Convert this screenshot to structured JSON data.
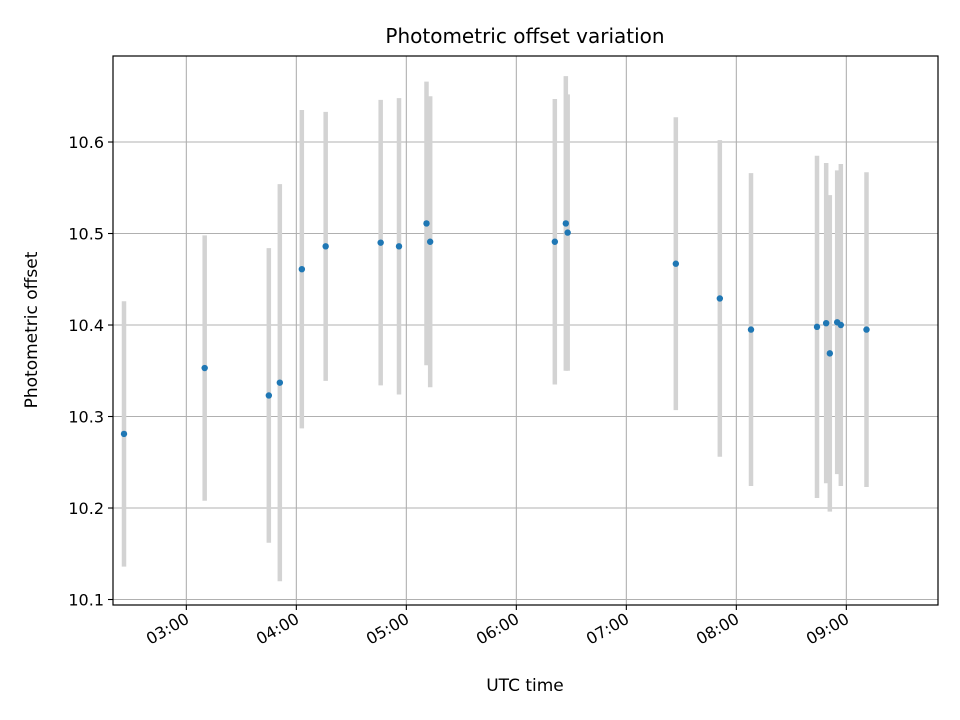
{
  "chart_data": {
    "type": "scatter",
    "title": "Photometric offset variation",
    "xlabel": "UTC time",
    "ylabel": "Photometric offset",
    "x_tick_labels": [
      "03:00",
      "04:00",
      "05:00",
      "06:00",
      "07:00",
      "08:00",
      "09:00"
    ],
    "y_tick_labels": [
      "10.1",
      "10.2",
      "10.3",
      "10.4",
      "10.5",
      "10.6"
    ],
    "xlim": [
      "02:20",
      "09:50"
    ],
    "ylim": [
      10.094,
      10.694
    ],
    "grid": true,
    "colors": {
      "points": "#1f77b4",
      "errorbars": "#d3d3d3",
      "grid": "#b0b0b0"
    },
    "points": [
      {
        "x": "02:26",
        "y": 10.281,
        "err": 0.145
      },
      {
        "x": "03:10",
        "y": 10.353,
        "err": 0.145
      },
      {
        "x": "03:45",
        "y": 10.323,
        "err": 0.161
      },
      {
        "x": "03:51",
        "y": 10.337,
        "err": 0.217
      },
      {
        "x": "04:03",
        "y": 10.461,
        "err": 0.174
      },
      {
        "x": "04:16",
        "y": 10.486,
        "err": 0.147
      },
      {
        "x": "04:46",
        "y": 10.49,
        "err": 0.156
      },
      {
        "x": "04:56",
        "y": 10.486,
        "err": 0.162
      },
      {
        "x": "05:11",
        "y": 10.511,
        "err": 0.155
      },
      {
        "x": "05:13",
        "y": 10.491,
        "err": 0.159
      },
      {
        "x": "06:21",
        "y": 10.491,
        "err": 0.156
      },
      {
        "x": "06:27",
        "y": 10.511,
        "err": 0.161
      },
      {
        "x": "06:28",
        "y": 10.501,
        "err": 0.151
      },
      {
        "x": "07:27",
        "y": 10.467,
        "err": 0.16
      },
      {
        "x": "07:51",
        "y": 10.429,
        "err": 0.173
      },
      {
        "x": "08:08",
        "y": 10.395,
        "err": 0.171
      },
      {
        "x": "08:44",
        "y": 10.398,
        "err": 0.187
      },
      {
        "x": "08:49",
        "y": 10.402,
        "err": 0.175
      },
      {
        "x": "08:51",
        "y": 10.369,
        "err": 0.173
      },
      {
        "x": "08:55",
        "y": 10.403,
        "err": 0.166
      },
      {
        "x": "08:57",
        "y": 10.4,
        "err": 0.176
      },
      {
        "x": "09:11",
        "y": 10.395,
        "err": 0.172
      }
    ]
  }
}
